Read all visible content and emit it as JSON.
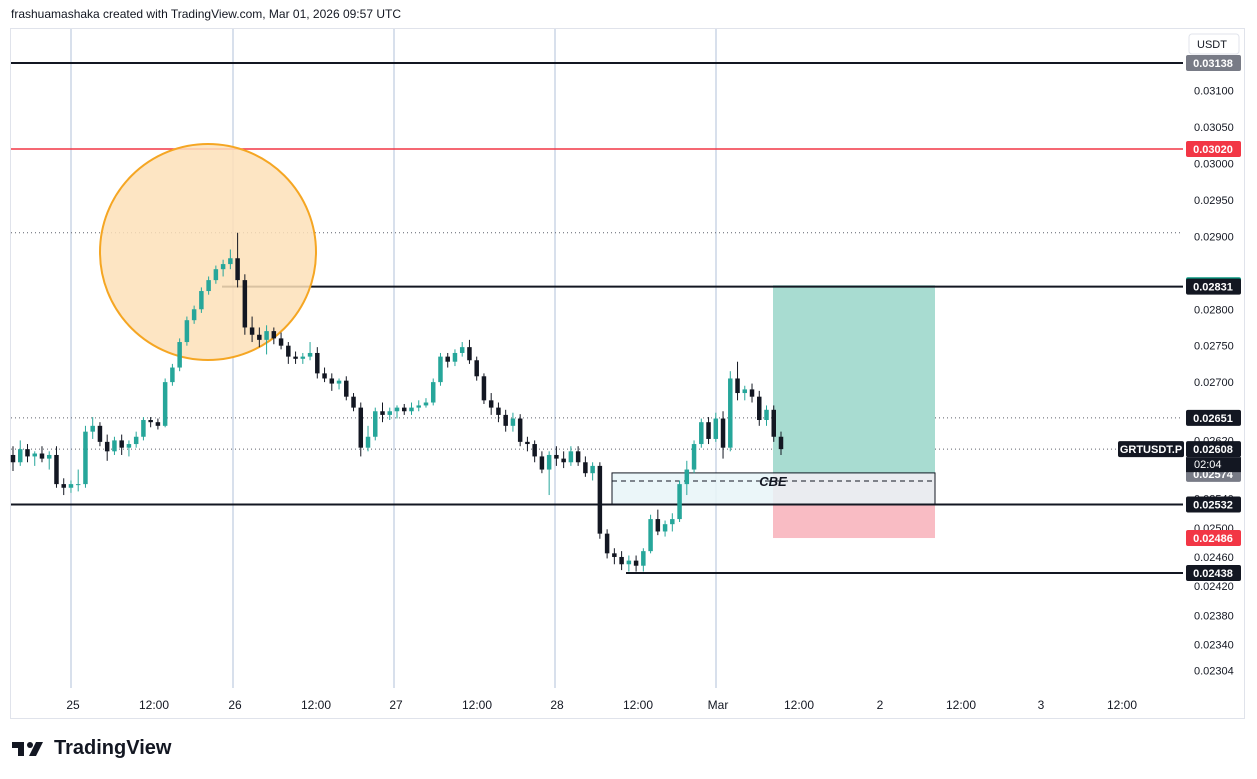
{
  "header": {
    "attribution": "frashuamashaka created with TradingView.com, Mar 01, 2026 09:57 UTC"
  },
  "brand": {
    "name": "TradingView"
  },
  "colors": {
    "up": "#26a69a",
    "down": "#131722",
    "red_line": "#f23645",
    "gridline_vertical": "#b2c0d9",
    "tp_zone": "#a8dcd1",
    "sl_zone": "#f9bcc4",
    "circle_fill": "#fde0b8",
    "circle_stroke": "#f5a623",
    "cbe_fill": "#e8f4f8",
    "teal_badge": "#089981",
    "red_badge": "#f23645",
    "gray_badge": "#787b86",
    "dark_badge": "#131722"
  },
  "chart_data": {
    "type": "candlestick",
    "symbol": "GRTUSDT.P",
    "currency": "USDT",
    "ylim": [
      0.0229,
      0.0316
    ],
    "y_ticks": [
      "0.03100",
      "0.03050",
      "0.03000",
      "0.02950",
      "0.02900",
      "0.02800",
      "0.02750",
      "0.02700",
      "0.02620",
      "0.02540",
      "0.02500",
      "0.02460",
      "0.02420",
      "0.02380",
      "0.02340",
      "0.02304"
    ],
    "x_ticks": [
      "25",
      "12:00",
      "26",
      "12:00",
      "27",
      "12:00",
      "28",
      "12:00",
      "Mar",
      "12:00",
      "2",
      "12:00",
      "3",
      "12:00"
    ],
    "horizontal_levels": [
      {
        "label": "0.03138",
        "value": 0.03138,
        "style": "solid",
        "color": "#131722"
      },
      {
        "label": "0.03020",
        "value": 0.0302,
        "style": "solid",
        "color": "#f23645"
      },
      {
        "label": "0.02831",
        "value": 0.02831,
        "style": "solid",
        "color": "#131722"
      },
      {
        "label": "0.02532",
        "value": 0.02532,
        "style": "solid",
        "color": "#131722"
      },
      {
        "label": "0.02438",
        "value": 0.02438,
        "style": "solid",
        "color": "#131722"
      }
    ],
    "dotted_levels": [
      0.02905,
      0.02651,
      0.02608
    ],
    "price_badges": [
      {
        "label": "0.03138",
        "value": 0.03138,
        "kind": "gray"
      },
      {
        "label": "0.03020",
        "value": 0.0302,
        "kind": "red"
      },
      {
        "label": "0.02833",
        "value": 0.02833,
        "kind": "teal"
      },
      {
        "label": "0.02831",
        "value": 0.02831,
        "kind": "dark"
      },
      {
        "label": "0.02651",
        "value": 0.02651,
        "kind": "dark"
      },
      {
        "label": "0.02608",
        "value": 0.02608,
        "kind": "dark"
      },
      {
        "label": "0.02574",
        "value": 0.02574,
        "kind": "gray"
      },
      {
        "label": "0.02532",
        "value": 0.02532,
        "kind": "dark"
      },
      {
        "label": "0.02486",
        "value": 0.02486,
        "kind": "red"
      },
      {
        "label": "0.02438",
        "value": 0.02438,
        "kind": "dark"
      }
    ],
    "countdown": "02:04",
    "position": {
      "entry": 0.02574,
      "take_profit": 0.02833,
      "stop_loss": 0.02486
    },
    "zone_label": "CBE",
    "candles": [
      [
        0.026,
        0.02612,
        0.02578,
        0.0259
      ],
      [
        0.0259,
        0.0262,
        0.02585,
        0.02608
      ],
      [
        0.02608,
        0.02615,
        0.0259,
        0.02598
      ],
      [
        0.02598,
        0.02605,
        0.02585,
        0.02602
      ],
      [
        0.02602,
        0.02612,
        0.0259,
        0.02595
      ],
      [
        0.02595,
        0.02605,
        0.0258,
        0.026
      ],
      [
        0.026,
        0.02612,
        0.02555,
        0.0256
      ],
      [
        0.0256,
        0.02568,
        0.02545,
        0.02555
      ],
      [
        0.02555,
        0.02565,
        0.02548,
        0.0256
      ],
      [
        0.0256,
        0.0258,
        0.0255,
        0.0256
      ],
      [
        0.0256,
        0.0264,
        0.02555,
        0.02632
      ],
      [
        0.02632,
        0.02652,
        0.02622,
        0.0264
      ],
      [
        0.0264,
        0.02645,
        0.02612,
        0.02618
      ],
      [
        0.02618,
        0.02628,
        0.02592,
        0.02605
      ],
      [
        0.02605,
        0.02625,
        0.026,
        0.0262
      ],
      [
        0.0262,
        0.02628,
        0.026,
        0.0261
      ],
      [
        0.0261,
        0.0262,
        0.02598,
        0.02615
      ],
      [
        0.02615,
        0.02632,
        0.0261,
        0.02625
      ],
      [
        0.02625,
        0.02652,
        0.0262,
        0.02648
      ],
      [
        0.02648,
        0.02652,
        0.02638,
        0.02645
      ],
      [
        0.02645,
        0.0265,
        0.02635,
        0.0264
      ],
      [
        0.0264,
        0.02705,
        0.02638,
        0.027
      ],
      [
        0.027,
        0.02725,
        0.02695,
        0.0272
      ],
      [
        0.0272,
        0.0276,
        0.02715,
        0.02755
      ],
      [
        0.02755,
        0.0279,
        0.0275,
        0.02785
      ],
      [
        0.02785,
        0.02805,
        0.0278,
        0.028
      ],
      [
        0.028,
        0.0283,
        0.02795,
        0.02825
      ],
      [
        0.02825,
        0.02845,
        0.0282,
        0.0284
      ],
      [
        0.0284,
        0.0286,
        0.02835,
        0.02855
      ],
      [
        0.02855,
        0.02868,
        0.02845,
        0.02862
      ],
      [
        0.02862,
        0.02882,
        0.02855,
        0.0287
      ],
      [
        0.0287,
        0.02905,
        0.0283,
        0.0284
      ],
      [
        0.0284,
        0.02848,
        0.02765,
        0.02775
      ],
      [
        0.02775,
        0.0279,
        0.02755,
        0.02765
      ],
      [
        0.02765,
        0.02775,
        0.02748,
        0.02758
      ],
      [
        0.02758,
        0.02778,
        0.02738,
        0.0277
      ],
      [
        0.0277,
        0.02775,
        0.02752,
        0.0276
      ],
      [
        0.0276,
        0.02768,
        0.02745,
        0.0275
      ],
      [
        0.0275,
        0.02755,
        0.02725,
        0.02735
      ],
      [
        0.02735,
        0.02742,
        0.02725,
        0.02732
      ],
      [
        0.02732,
        0.0274,
        0.02725,
        0.02735
      ],
      [
        0.02735,
        0.02755,
        0.0273,
        0.0274
      ],
      [
        0.0274,
        0.02748,
        0.02705,
        0.02712
      ],
      [
        0.02712,
        0.0272,
        0.027,
        0.02705
      ],
      [
        0.02705,
        0.02712,
        0.02688,
        0.02698
      ],
      [
        0.02698,
        0.02705,
        0.0269,
        0.02702
      ],
      [
        0.02702,
        0.02708,
        0.02675,
        0.0268
      ],
      [
        0.0268,
        0.02685,
        0.0266,
        0.02665
      ],
      [
        0.02665,
        0.02672,
        0.02598,
        0.0261
      ],
      [
        0.0261,
        0.0264,
        0.02605,
        0.02625
      ],
      [
        0.02625,
        0.02665,
        0.0262,
        0.0266
      ],
      [
        0.0266,
        0.02672,
        0.02645,
        0.02655
      ],
      [
        0.02655,
        0.02665,
        0.02648,
        0.0266
      ],
      [
        0.0266,
        0.02668,
        0.0265,
        0.02665
      ],
      [
        0.02665,
        0.0267,
        0.02655,
        0.0266
      ],
      [
        0.0266,
        0.02672,
        0.02655,
        0.02665
      ],
      [
        0.02665,
        0.02675,
        0.0266,
        0.02668
      ],
      [
        0.02668,
        0.02678,
        0.02665,
        0.02672
      ],
      [
        0.02672,
        0.02705,
        0.02668,
        0.027
      ],
      [
        0.027,
        0.0274,
        0.02695,
        0.02735
      ],
      [
        0.02735,
        0.0274,
        0.0272,
        0.02728
      ],
      [
        0.02728,
        0.02745,
        0.02722,
        0.0274
      ],
      [
        0.0274,
        0.02755,
        0.02735,
        0.02748
      ],
      [
        0.02748,
        0.02758,
        0.02725,
        0.0273
      ],
      [
        0.0273,
        0.02735,
        0.02702,
        0.02708
      ],
      [
        0.02708,
        0.02712,
        0.0267,
        0.02675
      ],
      [
        0.02675,
        0.02685,
        0.02655,
        0.02665
      ],
      [
        0.02665,
        0.02672,
        0.02645,
        0.02655
      ],
      [
        0.02655,
        0.02662,
        0.02632,
        0.0264
      ],
      [
        0.0264,
        0.02658,
        0.02632,
        0.0265
      ],
      [
        0.0265,
        0.02656,
        0.02612,
        0.02618
      ],
      [
        0.02618,
        0.02625,
        0.02605,
        0.02615
      ],
      [
        0.02615,
        0.0262,
        0.0259,
        0.02598
      ],
      [
        0.02598,
        0.02605,
        0.02575,
        0.0258
      ],
      [
        0.0258,
        0.02605,
        0.02545,
        0.026
      ],
      [
        0.026,
        0.02612,
        0.02585,
        0.02595
      ],
      [
        0.02595,
        0.02605,
        0.02582,
        0.0259
      ],
      [
        0.0259,
        0.02612,
        0.02585,
        0.02605
      ],
      [
        0.02605,
        0.02612,
        0.02585,
        0.0259
      ],
      [
        0.0259,
        0.02598,
        0.0257,
        0.02575
      ],
      [
        0.02575,
        0.0259,
        0.02565,
        0.02585
      ],
      [
        0.02585,
        0.0259,
        0.02485,
        0.02492
      ],
      [
        0.02492,
        0.02498,
        0.02458,
        0.02465
      ],
      [
        0.02465,
        0.02472,
        0.0245,
        0.0246
      ],
      [
        0.0246,
        0.02468,
        0.02442,
        0.0245
      ],
      [
        0.0245,
        0.02462,
        0.0244,
        0.02455
      ],
      [
        0.02455,
        0.02462,
        0.0244,
        0.02448
      ],
      [
        0.02448,
        0.02472,
        0.0244,
        0.02468
      ],
      [
        0.02468,
        0.02518,
        0.02465,
        0.02512
      ],
      [
        0.02512,
        0.02525,
        0.0249,
        0.02495
      ],
      [
        0.02495,
        0.0251,
        0.02488,
        0.02505
      ],
      [
        0.02505,
        0.0252,
        0.02495,
        0.02512
      ],
      [
        0.02512,
        0.02565,
        0.02508,
        0.0256
      ],
      [
        0.0256,
        0.02592,
        0.02545,
        0.0258
      ],
      [
        0.0258,
        0.0262,
        0.02575,
        0.02615
      ],
      [
        0.02615,
        0.0265,
        0.0261,
        0.02645
      ],
      [
        0.02645,
        0.02652,
        0.02615,
        0.02622
      ],
      [
        0.02622,
        0.02658,
        0.02618,
        0.0265
      ],
      [
        0.0265,
        0.0266,
        0.02595,
        0.0261
      ],
      [
        0.0261,
        0.02715,
        0.02605,
        0.02705
      ],
      [
        0.02705,
        0.02728,
        0.02675,
        0.02685
      ],
      [
        0.02685,
        0.02695,
        0.02675,
        0.0269
      ],
      [
        0.0269,
        0.02698,
        0.02672,
        0.0268
      ],
      [
        0.0268,
        0.02688,
        0.0264,
        0.02648
      ],
      [
        0.02648,
        0.02668,
        0.0264,
        0.02662
      ],
      [
        0.02662,
        0.02668,
        0.02618,
        0.02625
      ],
      [
        0.02625,
        0.02632,
        0.026,
        0.02608
      ]
    ]
  }
}
